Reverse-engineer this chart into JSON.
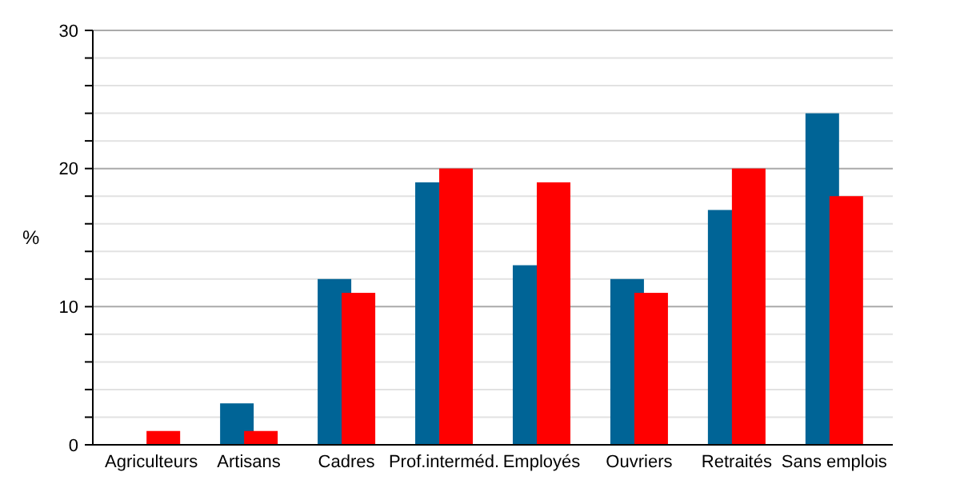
{
  "chart_data": {
    "type": "bar",
    "ylabel": "%",
    "categories": [
      "Agriculteurs",
      "Artisans",
      "Cadres",
      "Prof.interméd.",
      "Employés",
      "Ouvriers",
      "Retraités",
      "Sans emplois"
    ],
    "series": [
      {
        "color": "#006496",
        "values": [
          0,
          3,
          12,
          19,
          13,
          12,
          17,
          24
        ]
      },
      {
        "color": "#ff0000",
        "values": [
          1,
          1,
          11,
          20,
          19,
          11,
          20,
          18
        ]
      }
    ],
    "ylim": [
      0,
      30
    ],
    "yticks": [
      0,
      {
        "value": 2,
        "label": null
      },
      {
        "value": 4,
        "label": null
      },
      {
        "value": 6,
        "label": null
      },
      {
        "value": 8,
        "label": null
      },
      10,
      {
        "value": 12,
        "label": null
      },
      {
        "value": 14,
        "label": null
      },
      {
        "value": 16,
        "label": null
      },
      {
        "value": 18,
        "label": null
      },
      20,
      {
        "value": 22,
        "label": null
      },
      {
        "value": 24,
        "label": null
      },
      {
        "value": 26,
        "label": null
      },
      {
        "value": 28,
        "label": null
      },
      30
    ],
    "grid": true
  }
}
